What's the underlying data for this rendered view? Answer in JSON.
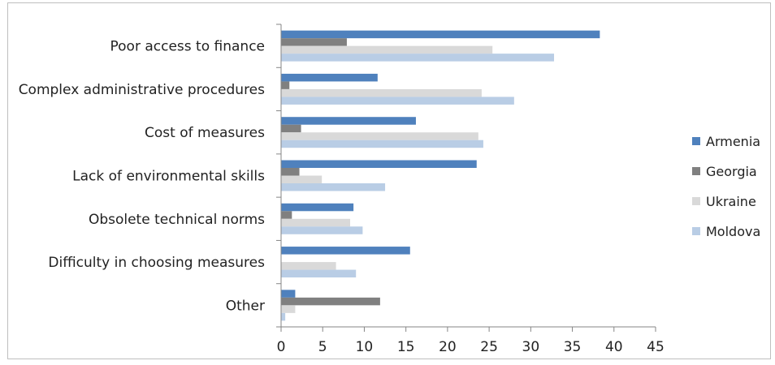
{
  "chart_data": {
    "type": "bar",
    "orientation": "horizontal",
    "title": "",
    "xlabel": "",
    "ylabel": "",
    "xlim": [
      0,
      45
    ],
    "xticks": [
      0,
      5,
      10,
      15,
      20,
      25,
      30,
      35,
      40,
      45
    ],
    "grid": false,
    "legend_position": "right",
    "categories": [
      "Poor access to finance",
      "Complex administrative procedures",
      "Cost of measures",
      "Lack of environmental skills",
      "Obsolete technical norms",
      "Difficulty in choosing measures",
      "Other"
    ],
    "series": [
      {
        "name": "Armenia",
        "color": "#4f81bd",
        "values": [
          38.3,
          11.6,
          16.2,
          23.5,
          8.7,
          15.5,
          1.7
        ]
      },
      {
        "name": "Georgia",
        "color": "#808080",
        "values": [
          7.9,
          1.0,
          2.4,
          2.2,
          1.3,
          0,
          11.9
        ]
      },
      {
        "name": "Ukraine",
        "color": "#d9d9d9",
        "values": [
          25.4,
          24.1,
          23.7,
          4.9,
          8.3,
          6.6,
          1.7
        ]
      },
      {
        "name": "Moldova",
        "color": "#b9cde5",
        "values": [
          32.8,
          28.0,
          24.3,
          12.5,
          9.8,
          9.0,
          0.5
        ]
      }
    ]
  }
}
